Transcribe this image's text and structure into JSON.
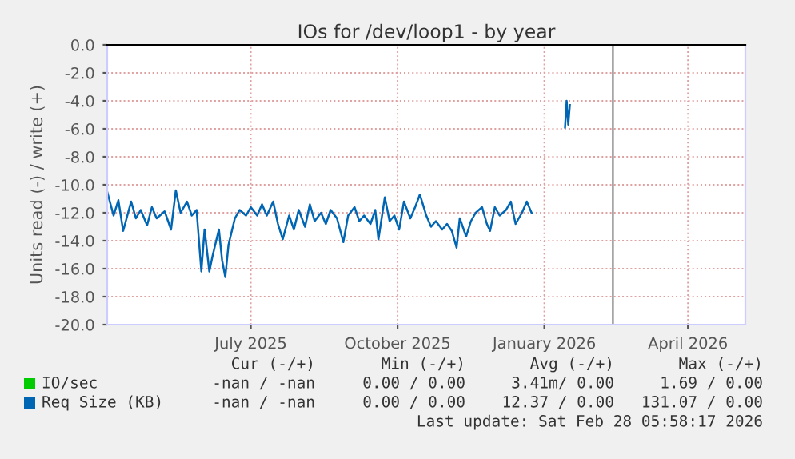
{
  "chart_data": {
    "type": "line",
    "title": "IOs for /dev/loop1 - by year",
    "ylabel": "Units read (-) / write (+)",
    "xlim": [
      "2025-04-17",
      "2026-05-22"
    ],
    "xticks": [
      {
        "value": "2025-07-16",
        "label": "July 2025"
      },
      {
        "value": "2025-10-16",
        "label": "October 2025"
      },
      {
        "value": "2026-01-16",
        "label": "January 2026"
      },
      {
        "value": "2026-04-16",
        "label": "April 2026"
      }
    ],
    "ylim": [
      -20,
      0
    ],
    "yticks": [
      {
        "value": -20,
        "label": "-20.0"
      },
      {
        "value": -18,
        "label": "-18.0"
      },
      {
        "value": -16,
        "label": "-16.0"
      },
      {
        "value": -14,
        "label": "-14.0"
      },
      {
        "value": -12,
        "label": "-12.0"
      },
      {
        "value": -10,
        "label": "-10.0"
      },
      {
        "value": -8,
        "label": "-8.0"
      },
      {
        "value": -6,
        "label": "-6.0"
      },
      {
        "value": -4,
        "label": "-4.0"
      },
      {
        "value": -2,
        "label": "-2.0"
      },
      {
        "value": 0,
        "label": "0.0"
      }
    ],
    "grid": true,
    "legend": "bottom",
    "ref_lines": [
      {
        "axis": "x",
        "value": "2026-02-28",
        "color": "#808080"
      }
    ],
    "series": [
      {
        "name": "IO/sec",
        "color": "#00cc00"
      },
      {
        "name": "Req Size (KB)",
        "color": "#0066b3",
        "x": [
          "2025-04-17",
          "2025-04-21",
          "2025-04-24",
          "2025-04-27",
          "2025-05-02",
          "2025-05-05",
          "2025-05-08",
          "2025-05-12",
          "2025-05-15",
          "2025-05-18",
          "2025-05-23",
          "2025-05-27",
          "2025-05-30",
          "2025-06-02",
          "2025-06-06",
          "2025-06-09",
          "2025-06-12",
          "2025-06-15",
          "2025-06-17",
          "2025-06-20",
          "2025-06-22",
          "2025-06-26",
          "2025-06-28",
          "2025-06-30",
          "2025-07-02",
          "2025-07-06",
          "2025-07-09",
          "2025-07-13",
          "2025-07-16",
          "2025-07-20",
          "2025-07-23",
          "2025-07-26",
          "2025-07-30",
          "2025-08-02",
          "2025-08-05",
          "2025-08-09",
          "2025-08-12",
          "2025-08-15",
          "2025-08-19",
          "2025-08-22",
          "2025-08-25",
          "2025-08-29",
          "2025-09-01",
          "2025-09-04",
          "2025-09-08",
          "2025-09-12",
          "2025-09-15",
          "2025-09-19",
          "2025-09-22",
          "2025-09-25",
          "2025-09-29",
          "2025-10-02",
          "2025-10-04",
          "2025-10-08",
          "2025-10-11",
          "2025-10-14",
          "2025-10-17",
          "2025-10-20",
          "2025-10-24",
          "2025-10-27",
          "2025-10-30",
          "2025-11-03",
          "2025-11-06",
          "2025-11-09",
          "2025-11-13",
          "2025-11-16",
          "2025-11-19",
          "2025-11-22",
          "2025-11-24",
          "2025-11-28",
          "2025-12-01",
          "2025-12-04",
          "2025-12-08",
          "2025-12-11",
          "2025-12-13",
          "2025-12-16",
          "2025-12-19",
          "2025-12-23",
          "2025-12-26",
          "2025-12-29",
          "2026-01-02",
          "2026-01-05",
          "2026-01-08",
          "2026-01-15",
          "2026-01-29",
          "2026-01-30",
          "2026-01-31",
          "2026-02-01"
        ],
        "values": [
          -10.5,
          -12.2,
          -11.1,
          -13.3,
          -11.2,
          -12.4,
          -11.8,
          -12.9,
          -11.6,
          -12.4,
          -11.9,
          -13.2,
          -10.4,
          -12.0,
          -11.2,
          -12.2,
          -11.8,
          -16.2,
          -13.2,
          -16.2,
          -15.1,
          -13.2,
          -15.4,
          -16.6,
          -14.3,
          -12.4,
          -11.8,
          -12.2,
          -11.6,
          -12.2,
          -11.4,
          -12.2,
          -11.2,
          -12.8,
          -13.9,
          -12.2,
          -13.2,
          -11.8,
          -13.0,
          -11.4,
          -12.6,
          -12.0,
          -12.8,
          -11.8,
          -12.4,
          -14.1,
          -12.2,
          -11.6,
          -12.6,
          -12.2,
          -12.8,
          -11.8,
          -13.9,
          -10.9,
          -12.6,
          -12.2,
          -13.2,
          -11.2,
          -12.4,
          -11.6,
          -10.7,
          -12.2,
          -13.0,
          -12.6,
          -13.2,
          -12.8,
          -13.3,
          -14.5,
          -12.4,
          -13.7,
          -12.6,
          -12.0,
          -11.6,
          -12.8,
          -13.3,
          -11.6,
          -12.2,
          -11.8,
          -11.2,
          -12.8,
          -12.0,
          -11.2,
          -12.0,
          null,
          -5.9,
          -4.0,
          -5.7,
          -4.3
        ]
      }
    ],
    "annotations": [
      "Cur (-/+)",
      "Min (-/+)",
      "Avg (-/+)",
      "Max (-/+)",
      "-nan / -nan",
      "0.00 / 0.00",
      "3.41m/ 0.00",
      "1.69 / 0.00",
      "-nan / -nan",
      "0.00 / 0.00",
      "12.37 / 0.00",
      "131.07 / 0.00",
      "Last update: Sat Feb 28 05:58:17 2026"
    ]
  }
}
